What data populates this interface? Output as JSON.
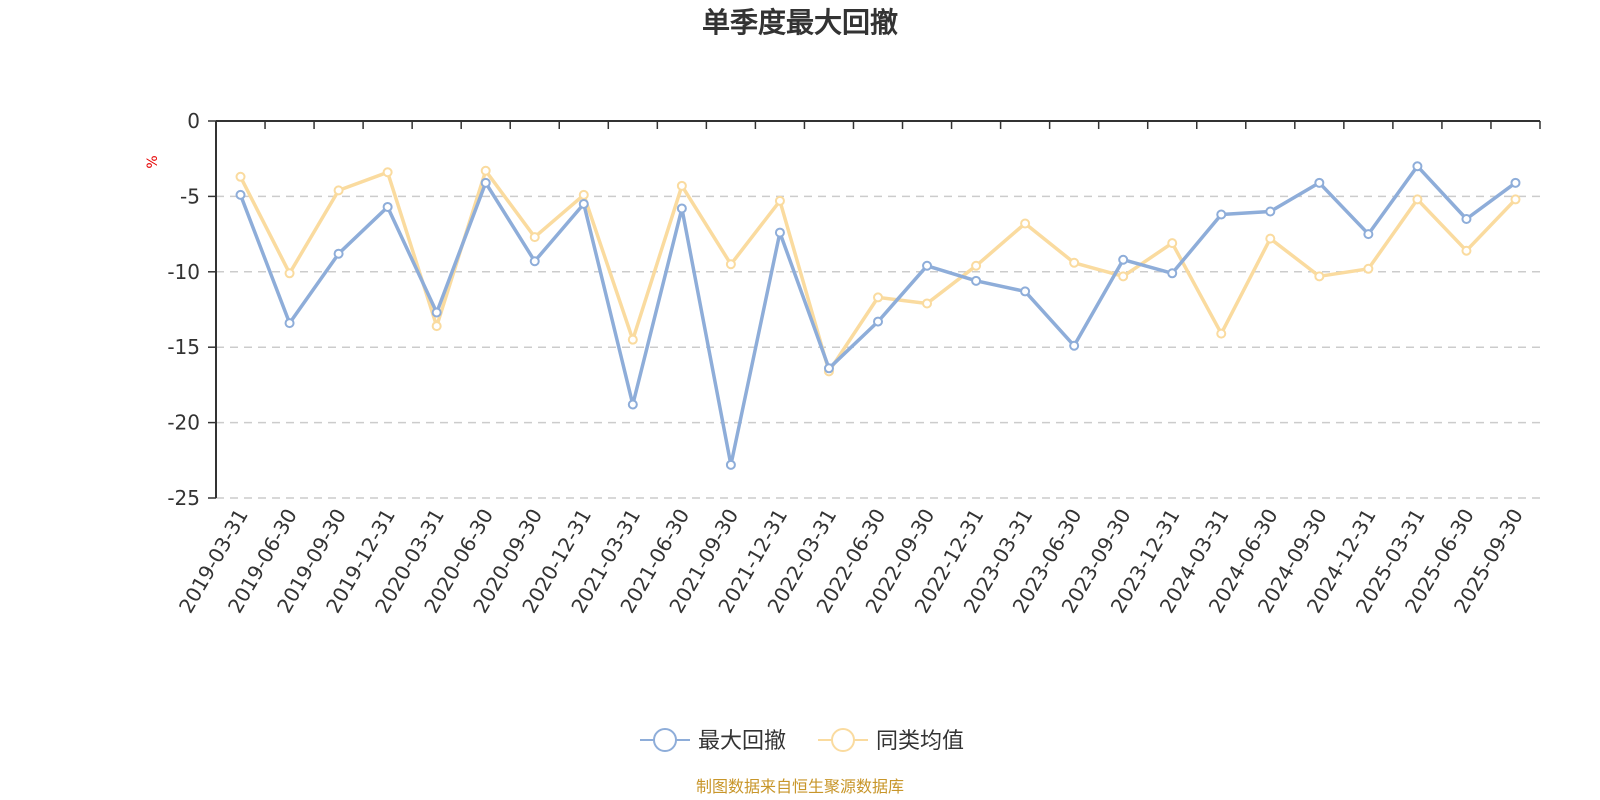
{
  "chart_data": {
    "type": "line",
    "title": "单季度最大回撤",
    "ylabel": "%",
    "ylim": [
      -25,
      0
    ],
    "yticks": [
      0,
      -5,
      -10,
      -15,
      -20,
      -25
    ],
    "grid": "horizontal-dashed",
    "legend_position": "bottom-center",
    "categories": [
      "2019-03-31",
      "2019-06-30",
      "2019-09-30",
      "2019-12-31",
      "2020-03-31",
      "2020-06-30",
      "2020-09-30",
      "2020-12-31",
      "2021-03-31",
      "2021-06-30",
      "2021-09-30",
      "2021-12-31",
      "2022-03-31",
      "2022-06-30",
      "2022-09-30",
      "2022-12-31",
      "2023-03-31",
      "2023-06-30",
      "2023-09-30",
      "2023-12-31",
      "2024-03-31",
      "2024-06-30",
      "2024-09-30",
      "2024-12-31",
      "2025-03-31",
      "2025-06-30",
      "2025-09-30"
    ],
    "series": [
      {
        "name": "最大回撤",
        "color": "#8eadd9",
        "values": [
          -4.9,
          -13.4,
          -8.8,
          -5.7,
          -12.7,
          -4.1,
          -9.3,
          -5.5,
          -18.8,
          -5.8,
          -22.8,
          -7.4,
          -16.4,
          -13.3,
          -9.6,
          -10.6,
          -11.3,
          -14.9,
          -9.2,
          -10.1,
          -6.2,
          -6.0,
          -4.1,
          -7.5,
          -3.0,
          -6.5,
          -4.1
        ]
      },
      {
        "name": "同类均值",
        "color": "#fadb9f",
        "values": [
          -3.7,
          -10.1,
          -4.6,
          -3.4,
          -13.6,
          -3.3,
          -7.7,
          -4.9,
          -14.5,
          -4.3,
          -9.5,
          -5.3,
          -16.6,
          -11.7,
          -12.1,
          -9.6,
          -6.8,
          -9.4,
          -10.3,
          -8.1,
          -14.1,
          -7.8,
          -10.3,
          -9.8,
          -5.2,
          -8.6,
          -5.2
        ]
      }
    ]
  },
  "source_text": "制图数据来自恒生聚源数据库"
}
